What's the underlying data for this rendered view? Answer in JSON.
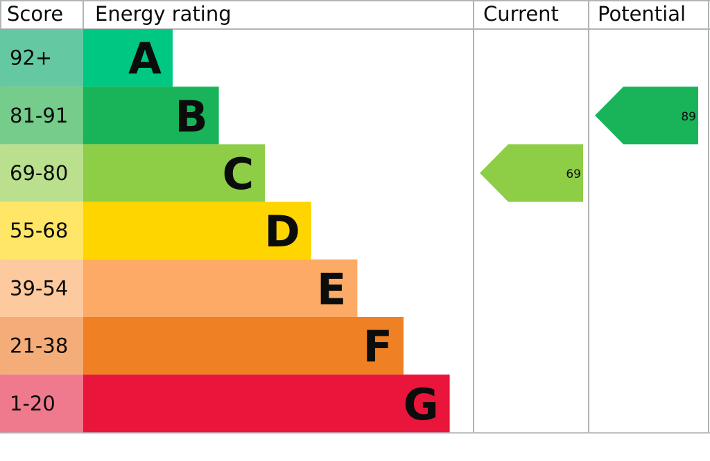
{
  "chart_data": {
    "type": "table",
    "headers": {
      "score": "Score",
      "rating": "Energy rating",
      "current": "Current",
      "potential": "Potential"
    },
    "bands": [
      {
        "letter": "A",
        "range": "92+",
        "color": "#00c781",
        "score_bg": "#64c8a2"
      },
      {
        "letter": "B",
        "range": "81-91",
        "color": "#19b459",
        "score_bg": "#75cc8b"
      },
      {
        "letter": "C",
        "range": "69-80",
        "color": "#8dce46",
        "score_bg": "#bae08e"
      },
      {
        "letter": "D",
        "range": "55-68",
        "color": "#ffd500",
        "score_bg": "#ffe666"
      },
      {
        "letter": "E",
        "range": "39-54",
        "color": "#fcaa65",
        "score_bg": "#fdc99e"
      },
      {
        "letter": "F",
        "range": "21-38",
        "color": "#ef8023",
        "score_bg": "#f4ad78"
      },
      {
        "letter": "G",
        "range": "1-20",
        "color": "#e9153b",
        "score_bg": "#f07a8d"
      }
    ],
    "current": {
      "value": "69",
      "band": "C",
      "color": "#8dce46"
    },
    "potential": {
      "value": "89",
      "band": "B",
      "color": "#19b459"
    }
  }
}
